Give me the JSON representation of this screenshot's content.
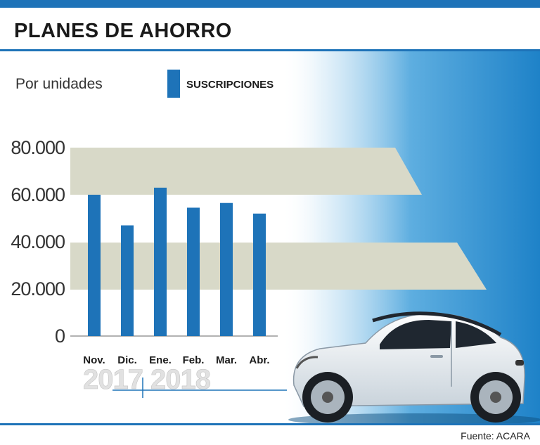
{
  "header": {
    "title": "PLANES DE AHORRO"
  },
  "footer": {
    "source": "Fuente: ACARA"
  },
  "colors": {
    "accent": "#1e73b8",
    "band": "#d8d9c8"
  },
  "chart_data": {
    "type": "bar",
    "title": "PLANES DE AHORRO",
    "subtitle": "Por unidades",
    "categories": [
      "Nov.",
      "Dic.",
      "Ene.",
      "Feb.",
      "Mar.",
      "Abr."
    ],
    "series": [
      {
        "name": "SUSCRIPCIONES",
        "values": [
          60000,
          47000,
          63000,
          54500,
          56500,
          52000
        ]
      }
    ],
    "yticks": [
      "0",
      "20.000",
      "40.000",
      "60.000",
      "80.000"
    ],
    "ylim": [
      0,
      80000
    ],
    "years": [
      "2017",
      "2018"
    ],
    "legend_position": "top",
    "grid": false
  }
}
